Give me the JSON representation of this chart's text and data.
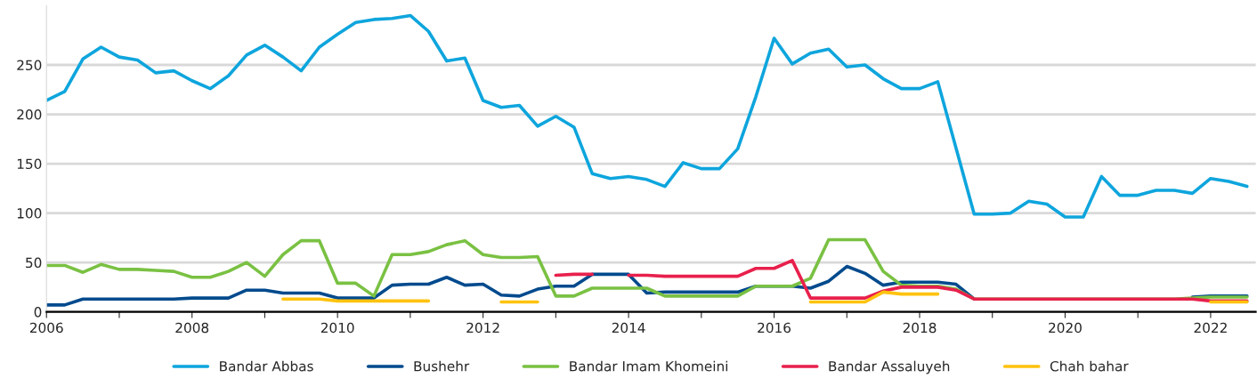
{
  "chart_data": {
    "type": "line",
    "x": [
      2006,
      2006.25,
      2006.5,
      2006.75,
      2007,
      2007.25,
      2007.5,
      2007.75,
      2008,
      2008.25,
      2008.5,
      2008.75,
      2009,
      2009.25,
      2009.5,
      2009.75,
      2010,
      2010.25,
      2010.5,
      2010.75,
      2011,
      2011.25,
      2011.5,
      2011.75,
      2012,
      2012.25,
      2012.5,
      2012.75,
      2013,
      2013.25,
      2013.5,
      2013.75,
      2014,
      2014.25,
      2014.5,
      2014.75,
      2015,
      2015.25,
      2015.5,
      2015.75,
      2016,
      2016.25,
      2016.5,
      2016.75,
      2017,
      2017.25,
      2017.5,
      2017.75,
      2018,
      2018.25,
      2018.5,
      2018.75,
      2019,
      2019.25,
      2019.5,
      2019.75,
      2020,
      2020.25,
      2020.5,
      2020.75,
      2021,
      2021.25,
      2021.5,
      2021.75,
      2022,
      2022.25,
      2022.5
    ],
    "series": [
      {
        "name": "Bandar Abbas",
        "color": "#0ea5dd",
        "values": [
          214,
          223,
          256,
          268,
          258,
          255,
          242,
          244,
          234,
          226,
          239,
          260,
          270,
          258,
          244,
          268,
          281,
          293,
          296,
          297,
          300,
          284,
          254,
          257,
          214,
          207,
          209,
          188,
          198,
          187,
          140,
          135,
          137,
          134,
          127,
          151,
          145,
          145,
          165,
          218,
          277,
          251,
          262,
          266,
          248,
          250,
          236,
          226,
          226,
          233,
          166,
          99,
          99,
          100,
          112,
          109,
          96,
          96,
          137,
          118,
          118,
          123,
          123,
          120,
          135,
          132,
          127
        ]
      },
      {
        "name": "Bushehr",
        "color": "#004a8d",
        "values": [
          7,
          7,
          13,
          13,
          13,
          13,
          13,
          13,
          14,
          14,
          14,
          22,
          22,
          19,
          19,
          19,
          14,
          14,
          14,
          27,
          28,
          28,
          35,
          27,
          28,
          17,
          16,
          23,
          26,
          26,
          38,
          38,
          38,
          19,
          20,
          20,
          20,
          20,
          20,
          26,
          26,
          26,
          24,
          31,
          46,
          39,
          27,
          30,
          30,
          30,
          28,
          13,
          null,
          null,
          null,
          null,
          null,
          null,
          null,
          null,
          null,
          null,
          null,
          15,
          16,
          16,
          16
        ]
      },
      {
        "name": "Bandar Imam Khomeini",
        "color": "#7ac143",
        "values": [
          47,
          47,
          40,
          48,
          43,
          43,
          42,
          41,
          35,
          35,
          41,
          50,
          36,
          58,
          72,
          72,
          29,
          29,
          16,
          58,
          58,
          61,
          68,
          72,
          58,
          55,
          55,
          56,
          16,
          16,
          24,
          24,
          24,
          24,
          16,
          16,
          16,
          16,
          16,
          26,
          26,
          26,
          34,
          73,
          73,
          73,
          41,
          27,
          26,
          26,
          23,
          13,
          13,
          13,
          13,
          13,
          13,
          13,
          13,
          13,
          13,
          13,
          13,
          14,
          15,
          15,
          15
        ]
      },
      {
        "name": "Bandar Assaluyeh",
        "color": "#e8204c",
        "values": [
          null,
          null,
          null,
          null,
          null,
          null,
          null,
          null,
          null,
          null,
          null,
          null,
          null,
          null,
          null,
          null,
          null,
          null,
          null,
          null,
          null,
          null,
          null,
          null,
          null,
          null,
          null,
          null,
          37,
          38,
          38,
          null,
          37,
          37,
          36,
          36,
          36,
          36,
          36,
          44,
          44,
          52,
          14,
          14,
          14,
          14,
          21,
          25,
          25,
          25,
          22,
          13,
          13,
          13,
          13,
          13,
          13,
          13,
          13,
          13,
          13,
          13,
          13,
          13,
          11,
          11,
          11
        ]
      },
      {
        "name": "Chah bahar",
        "color": "#ffc20e",
        "values": [
          null,
          null,
          null,
          null,
          null,
          null,
          null,
          null,
          null,
          null,
          null,
          null,
          null,
          13,
          13,
          13,
          11,
          11,
          11,
          11,
          11,
          11,
          null,
          null,
          null,
          10,
          10,
          10,
          null,
          null,
          null,
          null,
          null,
          null,
          null,
          null,
          null,
          null,
          null,
          null,
          null,
          null,
          10,
          10,
          10,
          10,
          20,
          18,
          18,
          18,
          null,
          null,
          null,
          null,
          null,
          null,
          null,
          null,
          null,
          null,
          null,
          null,
          null,
          null,
          10,
          10,
          10
        ]
      }
    ],
    "xlim": [
      2006,
      2022.62
    ],
    "xticks": [
      2006,
      {
        "value": 2007,
        "label": null
      },
      2008,
      {
        "value": 2009,
        "label": null
      },
      2010,
      {
        "value": 2011,
        "label": null
      },
      2012,
      {
        "value": 2013,
        "label": null
      },
      2014,
      {
        "value": 2015,
        "label": null
      },
      2016,
      {
        "value": 2017,
        "label": null
      },
      2018,
      {
        "value": 2019,
        "label": null
      },
      2020,
      {
        "value": 2021,
        "label": null
      },
      2022
    ],
    "ylim": [
      0,
      310
    ],
    "yticks": [
      0,
      50,
      100,
      150,
      200,
      250
    ],
    "grid": "y",
    "legend": "bottom",
    "line_style": "solid",
    "marker": "none"
  }
}
